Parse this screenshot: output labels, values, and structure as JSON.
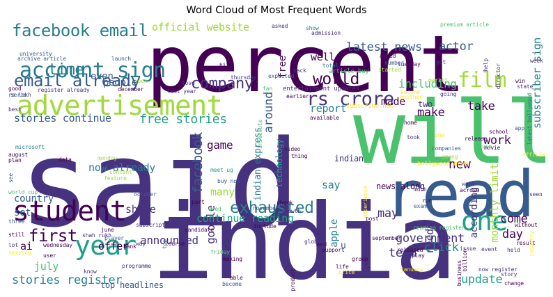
{
  "title": "Word Cloud of Most Frequent Words",
  "palette": [
    "#440154",
    "#46327e",
    "#365c8d",
    "#277f8e",
    "#1fa187",
    "#4ac16d",
    "#a0da39",
    "#fde725"
  ],
  "words": [
    {
      "text": "said",
      "color": "#46327e"
    },
    {
      "text": "percent",
      "color": "#440154"
    },
    {
      "text": "india",
      "color": "#46327e"
    },
    {
      "text": "will",
      "color": "#4ac16d"
    },
    {
      "text": "read",
      "color": "#365c8d"
    },
    {
      "text": "advertisement",
      "color": "#a0da39"
    },
    {
      "text": "account sign",
      "color": "#277f8e"
    },
    {
      "text": "student",
      "color": "#440154"
    },
    {
      "text": "facebook email",
      "color": "#277f8e"
    },
    {
      "text": "email already",
      "color": "#365c8d"
    },
    {
      "text": "year",
      "color": "#1fa187"
    },
    {
      "text": "rs crore",
      "color": "#46327e"
    },
    {
      "text": "one",
      "color": "#1fa187"
    },
    {
      "text": "film",
      "color": "#a0da39"
    },
    {
      "text": "company",
      "color": "#46327e"
    },
    {
      "text": "world",
      "color": "#440154"
    },
    {
      "text": "time",
      "color": "#277f8e"
    },
    {
      "text": "exhausted",
      "color": "#277f8e"
    },
    {
      "text": "first",
      "color": "#440154"
    },
    {
      "text": "stories register",
      "color": "#277f8e"
    },
    {
      "text": "latest news",
      "color": "#365c8d"
    },
    {
      "text": "actor",
      "color": "#365c8d"
    },
    {
      "text": "official website",
      "color": "#a0da39"
    },
    {
      "text": "stories continue",
      "color": "#365c8d"
    },
    {
      "text": "free stories",
      "color": "#1fa187"
    },
    {
      "text": "around",
      "color": "#365c8d"
    },
    {
      "text": "new",
      "color": "#440154"
    },
    {
      "text": "make",
      "color": "#440154"
    },
    {
      "text": "two",
      "color": "#46327e"
    },
    {
      "text": "take",
      "color": "#440154"
    },
    {
      "text": "including",
      "color": "#4ac16d"
    },
    {
      "text": "report",
      "color": "#277f8e"
    },
    {
      "text": "made",
      "color": "#440154"
    },
    {
      "text": "google",
      "color": "#46327e"
    },
    {
      "text": "facebook",
      "color": "#365c8d"
    },
    {
      "text": "game",
      "color": "#440154"
    },
    {
      "text": "now already",
      "color": "#277f8e"
    },
    {
      "text": "many",
      "color": "#a0da39"
    },
    {
      "text": "continue reading",
      "color": "#1fa187"
    },
    {
      "text": "announced",
      "color": "#46327e"
    },
    {
      "text": "share",
      "color": "#46327e"
    },
    {
      "text": "offer",
      "color": "#440154"
    },
    {
      "text": "july",
      "color": "#4ac16d"
    },
    {
      "text": "ai",
      "color": "#440154"
    },
    {
      "text": "country",
      "color": "#365c8d"
    },
    {
      "text": "set",
      "color": "#365c8d"
    },
    {
      "text": "people",
      "color": "#365c8d"
    },
    {
      "text": "even",
      "color": "#365c8d"
    },
    {
      "text": "well",
      "color": "#440154"
    },
    {
      "text": "free",
      "color": "#440154"
    },
    {
      "text": "say",
      "color": "#277f8e"
    },
    {
      "text": "need",
      "color": "#46327e"
    },
    {
      "text": "work",
      "color": "#440154"
    },
    {
      "text": "according",
      "color": "#46327e"
    },
    {
      "text": "may",
      "color": "#46327e"
    },
    {
      "text": "government",
      "color": "#46327e"
    },
    {
      "text": "day",
      "color": "#440154"
    },
    {
      "text": "come",
      "color": "#440154"
    },
    {
      "text": "update",
      "color": "#1fa187"
    },
    {
      "text": "click",
      "color": "#277f8e"
    },
    {
      "text": "team",
      "color": "#46327e"
    },
    {
      "text": "monthly limit",
      "color": "#a0da39"
    },
    {
      "text": "subscriber sign",
      "color": "#277f8e"
    },
    {
      "text": "indian express",
      "color": "#277f8e"
    },
    {
      "text": "technology",
      "color": "#1fa187"
    },
    {
      "text": "apple",
      "color": "#277f8e"
    },
    {
      "text": "top headlines",
      "color": "#365c8d"
    },
    {
      "text": "news along",
      "color": "#440154"
    },
    {
      "text": "indian",
      "color": "#46327e"
    },
    {
      "text": "u",
      "color": "#365c8d"
    },
    {
      "text": "entertainment updates",
      "color": "#46327e"
    },
    {
      "text": "article buy",
      "color": "#4ac16d"
    },
    {
      "text": "subscribe now",
      "color": "#fde725"
    },
    {
      "text": "bollywood news",
      "color": "#fde725"
    },
    {
      "text": "latest bollywood",
      "color": "#277f8e"
    },
    {
      "text": "premium article",
      "color": "#4ac16d"
    },
    {
      "text": "register already",
      "color": "#46327e"
    },
    {
      "text": "archive article",
      "color": "#365c8d"
    },
    {
      "text": "launch",
      "color": "#365c8d"
    },
    {
      "text": "university",
      "color": "#365c8d"
    },
    {
      "text": "rs lakh",
      "color": "#46327e"
    },
    {
      "text": "microsoft",
      "color": "#277f8e"
    },
    {
      "text": "world cup",
      "color": "#4ac16d"
    },
    {
      "text": "shah rukh",
      "color": "#46327e"
    },
    {
      "text": "last year",
      "color": "#46327e"
    },
    {
      "text": "buy now",
      "color": "#365c8d"
    },
    {
      "text": "meet ug",
      "color": "#1fa187"
    },
    {
      "text": "asked",
      "color": "#46327e"
    },
    {
      "text": "show",
      "color": "#277f8e"
    },
    {
      "text": "admission",
      "color": "#46327e"
    },
    {
      "text": "tuesday",
      "color": "#440154"
    },
    {
      "text": "got",
      "color": "#46327e"
    },
    {
      "text": "total",
      "color": "#277f8e"
    },
    {
      "text": "started",
      "color": "#a0da39"
    },
    {
      "text": "added",
      "color": "#440154"
    },
    {
      "text": "number",
      "color": "#365c8d"
    },
    {
      "text": "back",
      "color": "#46327e"
    },
    {
      "text": "market",
      "color": "#a0da39"
    },
    {
      "text": "hit",
      "color": "#440154"
    },
    {
      "text": "thursday",
      "color": "#46327e"
    },
    {
      "text": "december",
      "color": "#440154"
    },
    {
      "text": "look",
      "color": "#a0da39"
    },
    {
      "text": "good",
      "color": "#440154"
    },
    {
      "text": "serie",
      "color": "#365c8d"
    },
    {
      "text": "best",
      "color": "#46327e"
    },
    {
      "text": "love",
      "color": "#46327e"
    },
    {
      "text": "fan",
      "color": "#4ac16d"
    },
    {
      "text": "expected",
      "color": "#365c8d"
    },
    {
      "text": "earlier",
      "color": "#440154"
    },
    {
      "text": "another",
      "color": "#fde725"
    },
    {
      "text": "second",
      "color": "#fde725"
    },
    {
      "text": "going",
      "color": "#46327e"
    },
    {
      "text": "state",
      "color": "#46327e"
    },
    {
      "text": "win",
      "color": "#440154"
    },
    {
      "text": "week",
      "color": "#46327e"
    },
    {
      "text": "help",
      "color": "#46327e"
    },
    {
      "text": "director",
      "color": "#46327e"
    },
    {
      "text": "school",
      "color": "#440154"
    },
    {
      "text": "release",
      "color": "#440154"
    },
    {
      "text": "home",
      "color": "#440154"
    },
    {
      "text": "movie",
      "color": "#440154"
    },
    {
      "text": "companies",
      "color": "#365c8d"
    },
    {
      "text": "due",
      "color": "#fde725"
    },
    {
      "text": "use",
      "color": "#4ac16d"
    },
    {
      "text": "among",
      "color": "#a0da39"
    },
    {
      "text": "app",
      "color": "#365c8d"
    },
    {
      "text": "took",
      "color": "#46327e"
    },
    {
      "text": "official",
      "color": "#fde725"
    },
    {
      "text": "want",
      "color": "#46327e"
    },
    {
      "text": "across",
      "color": "#440154"
    },
    {
      "text": "seen",
      "color": "#46327e"
    },
    {
      "text": "available",
      "color": "#440154"
    },
    {
      "text": "video",
      "color": "#440154"
    },
    {
      "text": "thing",
      "color": "#440154"
    },
    {
      "text": "institute",
      "color": "#4ac16d"
    },
    {
      "text": "experience",
      "color": "#fde725"
    },
    {
      "text": "much",
      "color": "#46327e"
    },
    {
      "text": "run",
      "color": "#440154"
    },
    {
      "text": "exam",
      "color": "#365c8d"
    },
    {
      "text": "post",
      "color": "#440154"
    },
    {
      "text": "growth",
      "color": "#46327e"
    },
    {
      "text": "check",
      "color": "#440154"
    },
    {
      "text": "november",
      "color": "#365c8d"
    },
    {
      "text": "used",
      "color": "#4ac16d"
    },
    {
      "text": "part",
      "color": "#440154"
    },
    {
      "text": "october",
      "color": "#365c8d"
    },
    {
      "text": "candidate",
      "color": "#440154"
    },
    {
      "text": "player",
      "color": "#365c8d"
    },
    {
      "text": "family",
      "color": "#46327e"
    },
    {
      "text": "subscription",
      "color": "#46327e"
    },
    {
      "text": "june",
      "color": "#440154"
    },
    {
      "text": "bank",
      "color": "#440154"
    },
    {
      "text": "way",
      "color": "#46327e"
    },
    {
      "text": "wednesday",
      "color": "#440154"
    },
    {
      "text": "user",
      "color": "#440154"
    },
    {
      "text": "course",
      "color": "#440154"
    },
    {
      "text": "programme",
      "color": "#46327e"
    },
    {
      "text": "know",
      "color": "#46327e"
    },
    {
      "text": "making",
      "color": "#440154"
    },
    {
      "text": "friday",
      "color": "#4ac16d"
    },
    {
      "text": "include",
      "color": "#440154"
    },
    {
      "text": "able",
      "color": "#440154"
    },
    {
      "text": "become",
      "color": "#365c8d"
    },
    {
      "text": "product",
      "color": "#440154"
    },
    {
      "text": "global",
      "color": "#46327e"
    },
    {
      "text": "support",
      "color": "#440154"
    },
    {
      "text": "end",
      "color": "#440154"
    },
    {
      "text": "life",
      "color": "#440154"
    },
    {
      "text": "price",
      "color": "#fde725"
    },
    {
      "text": "group",
      "color": "#440154"
    },
    {
      "text": "released",
      "color": "#440154"
    },
    {
      "text": "play",
      "color": "#440154"
    },
    {
      "text": "january",
      "color": "#fde725"
    },
    {
      "text": "september",
      "color": "#440154"
    },
    {
      "text": "reading register",
      "color": "#4ac16d"
    },
    {
      "text": "business",
      "color": "#440154"
    },
    {
      "text": "billion",
      "color": "#440154"
    },
    {
      "text": "issue",
      "color": "#46327e"
    },
    {
      "text": "event",
      "color": "#46327e"
    },
    {
      "text": "held",
      "color": "#46327e"
    },
    {
      "text": "result",
      "color": "#440154"
    },
    {
      "text": "industry",
      "color": "#fde725"
    },
    {
      "text": "without",
      "color": "#440154"
    },
    {
      "text": "now register",
      "color": "#46327e"
    },
    {
      "text": "story",
      "color": "#46327e"
    },
    {
      "text": "change",
      "color": "#440154"
    },
    {
      "text": "still",
      "color": "#440154"
    },
    {
      "text": "lot",
      "color": "#46327e"
    },
    {
      "text": "three",
      "color": "#365c8d"
    },
    {
      "text": "august",
      "color": "#440154"
    },
    {
      "text": "service",
      "color": "#fde725"
    },
    {
      "text": "plan",
      "color": "#440154"
    },
    {
      "text": "data",
      "color": "#440154"
    },
    {
      "text": "content",
      "color": "#a0da39"
    },
    {
      "text": "feature",
      "color": "#a0da39"
    },
    {
      "text": "monday",
      "color": "#a0da39"
    },
    {
      "text": "top",
      "color": "#277f8e"
    },
    {
      "text": "see",
      "color": "#365c8d"
    }
  ]
}
